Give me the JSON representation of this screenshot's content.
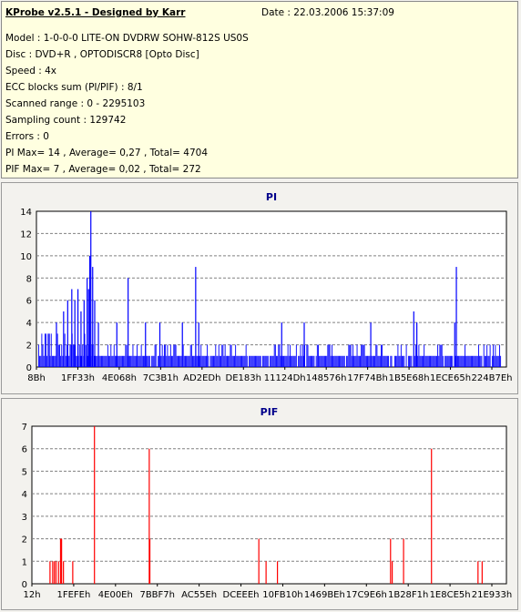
{
  "info": {
    "title": "KProbe v2.5.1 - Designed by Karr",
    "date": "Date : 22.03.2006 15:37:09",
    "lines": [
      "Model : 1-0-0-0 LITE-ON DVDRW SOHW-812S  US0S",
      "Disc : DVD+R , OPTODISCR8 [Opto Disc]",
      "Speed : 4x",
      "ECC blocks sum (PI/PIF) : 8/1",
      "Scanned range : 0 - 2295103",
      "Sampling count : 129742",
      "Errors : 0",
      "PI Max= 14 , Average= 0,27 , Total= 4704",
      "PIF Max= 7 , Average= 0,02 , Total= 272"
    ]
  },
  "chart_data": [
    {
      "type": "bar",
      "title": "PI",
      "color": "#0000ff",
      "ylim": [
        0,
        14
      ],
      "yticks": [
        0,
        2,
        4,
        6,
        8,
        10,
        12,
        14
      ],
      "xlim": [
        0,
        2295103
      ],
      "xtick_labels": [
        "8Bh",
        "1FF33h",
        "4E068h",
        "7C3B1h",
        "AD2EDh",
        "DE183h",
        "11124Dh",
        "148576h",
        "17F74Bh",
        "1B5E68h",
        "1ECE65h",
        "224B7Eh"
      ],
      "grid": true,
      "peaks": [
        {
          "x": 60000,
          "y": 3
        },
        {
          "x": 95000,
          "y": 4
        },
        {
          "x": 130000,
          "y": 5
        },
        {
          "x": 150000,
          "y": 6
        },
        {
          "x": 170000,
          "y": 7
        },
        {
          "x": 185000,
          "y": 6
        },
        {
          "x": 200000,
          "y": 7
        },
        {
          "x": 215000,
          "y": 5
        },
        {
          "x": 230000,
          "y": 6
        },
        {
          "x": 245000,
          "y": 8
        },
        {
          "x": 252000,
          "y": 7
        },
        {
          "x": 258000,
          "y": 10
        },
        {
          "x": 263000,
          "y": 14
        },
        {
          "x": 272000,
          "y": 9
        },
        {
          "x": 282000,
          "y": 6
        },
        {
          "x": 300000,
          "y": 4
        },
        {
          "x": 390000,
          "y": 4
        },
        {
          "x": 445000,
          "y": 8
        },
        {
          "x": 530000,
          "y": 4
        },
        {
          "x": 600000,
          "y": 4
        },
        {
          "x": 710000,
          "y": 4
        },
        {
          "x": 775000,
          "y": 9
        },
        {
          "x": 790000,
          "y": 4
        },
        {
          "x": 1195000,
          "y": 4
        },
        {
          "x": 1305000,
          "y": 4
        },
        {
          "x": 1630000,
          "y": 4
        },
        {
          "x": 1840000,
          "y": 5
        },
        {
          "x": 1855000,
          "y": 4
        },
        {
          "x": 2040000,
          "y": 4
        },
        {
          "x": 2048000,
          "y": 9
        }
      ]
    },
    {
      "type": "bar",
      "title": "PIF",
      "color": "#ff0000",
      "ylim": [
        0,
        7
      ],
      "yticks": [
        0,
        1,
        2,
        3,
        4,
        5,
        6,
        7
      ],
      "xlim": [
        0,
        2295103
      ],
      "xtick_labels": [
        "12h",
        "1FEFEh",
        "4E00Eh",
        "7BBF7h",
        "AC55Eh",
        "DCEEEh",
        "10FB10h",
        "1469BEh",
        "17C9E6h",
        "1B28F1h",
        "1E8CE5h",
        "21E933h"
      ],
      "grid": true,
      "peaks": [
        {
          "x": 85000,
          "y": 1
        },
        {
          "x": 98000,
          "y": 1
        },
        {
          "x": 106000,
          "y": 1
        },
        {
          "x": 114000,
          "y": 1
        },
        {
          "x": 126000,
          "y": 1
        },
        {
          "x": 136000,
          "y": 2
        },
        {
          "x": 141000,
          "y": 2
        },
        {
          "x": 150000,
          "y": 1
        },
        {
          "x": 195000,
          "y": 1
        },
        {
          "x": 300000,
          "y": 7
        },
        {
          "x": 565000,
          "y": 6
        },
        {
          "x": 568000,
          "y": 2
        },
        {
          "x": 1095000,
          "y": 2
        },
        {
          "x": 1130000,
          "y": 1
        },
        {
          "x": 1185000,
          "y": 1
        },
        {
          "x": 1732000,
          "y": 2
        },
        {
          "x": 1740000,
          "y": 1
        },
        {
          "x": 1795000,
          "y": 2
        },
        {
          "x": 1930000,
          "y": 6
        },
        {
          "x": 2155000,
          "y": 1
        },
        {
          "x": 2175000,
          "y": 1
        }
      ]
    }
  ]
}
